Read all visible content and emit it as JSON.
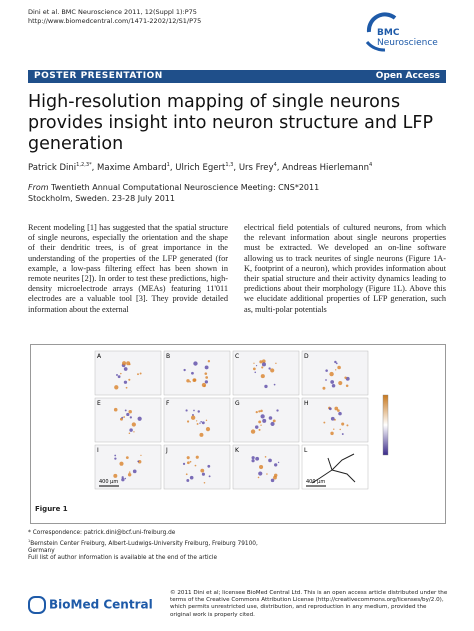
{
  "header": {
    "citation": "Dini et al. BMC Neuroscience 2011, 12(Suppl 1):P75",
    "url": "http://www.biomedcentral.com/1471-2202/12/S1/P75",
    "logo_top": "BMC",
    "logo_bottom": "Neuroscience"
  },
  "banner": {
    "left": "POSTER PRESENTATION",
    "right": "Open Access"
  },
  "title": "High-resolution mapping of single neurons provides insight into neuron structure and LFP generation",
  "authors": [
    {
      "name": "Patrick Dini",
      "sup": "1,2,3*"
    },
    {
      "name": "Maxime Ambard",
      "sup": "1"
    },
    {
      "name": "Ulrich Egert",
      "sup": "1,3"
    },
    {
      "name": "Urs Frey",
      "sup": "4"
    },
    {
      "name": "Andreas Hierlemann",
      "sup": "4"
    }
  ],
  "meeting": {
    "prefix": "From",
    "name": "Twentieth Annual Computational Neuroscience Meeting: CNS*2011",
    "place": "Stockholm, Sweden. 23-28 July 2011"
  },
  "body": {
    "left": "Recent modeling [1] has suggested that the spatial structure of single neurons, especially the orientation and the shape of their dendritic trees, is of great importance in the understanding of the properties of the LFP generated (for example, a low-pass filtering effect has been shown in remote neurites [2]). In order to test these predictions, high-density microelectrode arrays (MEAs) featuring 11'011 electrodes are a valuable tool [3]. They provide detailed information about the external",
    "right": "electrical field potentials of cultured neurons, from which the relevant information about single neurons properties must be extracted. We developed an on-line software allowing us to track neurites of single neurons (Figure 1A-K, footprint of a neuron), which provides information about their spatial structure and their activity dynamics leading to predictions about their morphology (Figure 1L). Above this we elucidate additional properties of LFP generation, such as, multi-polar potentials"
  },
  "figure": {
    "panels": [
      "A",
      "B",
      "C",
      "D",
      "E",
      "F",
      "G",
      "H",
      "I",
      "J",
      "K",
      "L"
    ],
    "scale_labels": [
      "400 μm",
      "400 μm"
    ],
    "caption": "Figure 1"
  },
  "footer": {
    "correspondence": "* Correspondence: patrick.dini@bcf.uni-freiburg.de",
    "affiliation_sup": "1",
    "affiliation": "Bernstein Center Freiburg, Albert-Ludwigs-University Freiburg, Freiburg 79100, Germany",
    "more": "Full list of author information is available at the end of the article",
    "publisher": "BioMed Central",
    "license": "© 2011 Dini et al; licensee BioMed Central Ltd. This is an open access article distributed under the terms of the Creative Commons Attribution License (http://creativecommons.org/licenses/by/2.0), which permits unrestricted use, distribution, and reproduction in any medium, provided the original work is properly cited."
  }
}
